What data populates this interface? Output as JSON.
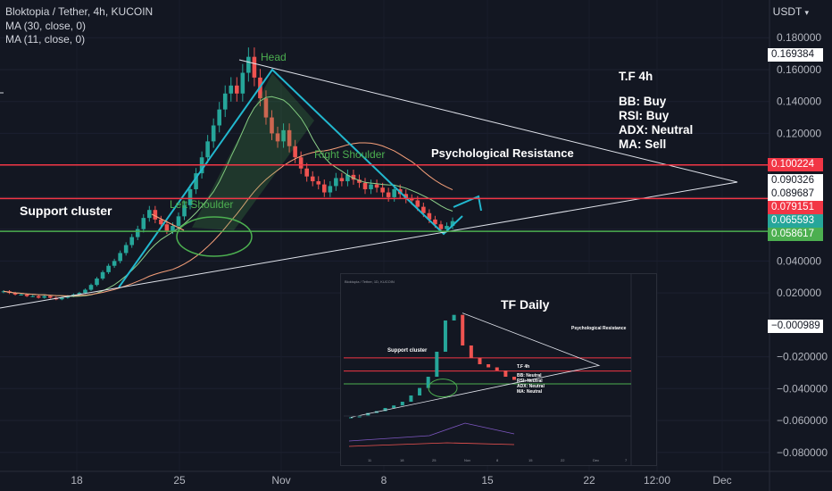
{
  "header": {
    "symbol": "Bloktopia / Tether, 4h, KUCOIN",
    "ma1": "MA (30, close, 0)",
    "ma2": "MA (11, close, 0)"
  },
  "currency": "USDT",
  "colors": {
    "background": "#131722",
    "up_candle": "#26a69a",
    "down_candle": "#ef5350",
    "resistance_line": "#f23645",
    "support_line": "#4caf50",
    "pattern_line": "#22b8cf",
    "trend_line": "#e0e3eb",
    "ma30": "#f7a07a",
    "ma11": "#8fd18b"
  },
  "chart_data": {
    "type": "candlestick",
    "symbol": "Bloktopia / Tether, 4h, KUCOIN",
    "y_ticks": [
      0.18,
      0.16,
      0.14,
      0.12,
      0.1,
      0.08,
      0.06,
      0.04,
      0.02,
      -0.02,
      -0.04,
      -0.06,
      -0.08
    ],
    "y_tick_labels": [
      "0.180000",
      "0.160000",
      "0.140000",
      "0.120000",
      "0.100000",
      "0.080000",
      "0.060000",
      "0.040000",
      "0.020000",
      "−0.020000",
      "−0.040000",
      "−0.060000",
      "−0.080000"
    ],
    "ylim": [
      -0.093,
      0.193
    ],
    "x_tick_labels": [
      "18",
      "25",
      "Nov",
      "8",
      "15",
      "22",
      "12:00",
      "Dec"
    ],
    "price_levels": [
      {
        "value": "0.169384",
        "price": 0.169384,
        "color": "#ffffff",
        "text_color": "#131722"
      },
      {
        "value": "0.100224",
        "price": 0.100224,
        "color": "#f23645",
        "text_color": "#ffffff"
      },
      {
        "value": "0.090326",
        "price": 0.090326,
        "color": "#ffffff",
        "text_color": "#131722"
      },
      {
        "value": "0.089687",
        "price": 0.089687,
        "color": "#ffffff",
        "text_color": "#131722"
      },
      {
        "value": "0.079151",
        "price": 0.079151,
        "color": "#f23645",
        "text_color": "#ffffff"
      },
      {
        "value": "0.065593",
        "price": 0.065593,
        "color": "#26a69a",
        "text_color": "#ffffff"
      },
      {
        "value": "0.058617",
        "price": 0.058617,
        "color": "#4caf50",
        "text_color": "#ffffff"
      },
      {
        "value": "−0.000989",
        "price": -0.000989,
        "color": "#ffffff",
        "text_color": "#131722"
      }
    ],
    "horizontal_lines": [
      {
        "name": "Psychological Resistance",
        "value": 0.100224
      },
      {
        "name": "resistance",
        "value": 0.079151
      },
      {
        "name": "support",
        "value": 0.058617
      }
    ],
    "annotations": {
      "head": "Head",
      "left_shoulder": "Left Shoulder",
      "right_shoulder": "Right Shoulder",
      "support_cluster": "Support cluster",
      "psych_resistance": "Psychological Resistance",
      "tf_title": "T.F 4h",
      "signals": [
        "BB: Buy",
        "RSI: Buy",
        "ADX: Neutral",
        "MA: Sell"
      ]
    },
    "close_series": [
      0.021,
      0.02,
      0.019,
      0.019,
      0.018,
      0.018,
      0.017,
      0.018,
      0.017,
      0.016,
      0.017,
      0.018,
      0.019,
      0.02,
      0.022,
      0.025,
      0.029,
      0.033,
      0.037,
      0.04,
      0.045,
      0.05,
      0.055,
      0.06,
      0.067,
      0.072,
      0.066,
      0.063,
      0.059,
      0.062,
      0.068,
      0.075,
      0.085,
      0.095,
      0.105,
      0.115,
      0.125,
      0.135,
      0.145,
      0.15,
      0.145,
      0.158,
      0.168,
      0.155,
      0.142,
      0.13,
      0.12,
      0.115,
      0.122,
      0.112,
      0.105,
      0.098,
      0.093,
      0.09,
      0.088,
      0.083,
      0.087,
      0.092,
      0.09,
      0.094,
      0.091,
      0.089,
      0.085,
      0.088,
      0.086,
      0.083,
      0.08,
      0.085,
      0.082,
      0.079,
      0.078,
      0.074,
      0.07,
      0.066,
      0.063,
      0.06,
      0.062,
      0.065
    ]
  },
  "inset": {
    "symbol": "Bloktopia / Tether, 1D, KUCOIN",
    "title": "TF Daily",
    "psych_label": "Psychological Resistance",
    "support_label": "Support cluster",
    "tf_title": "T.F 4h",
    "signals": [
      "BB: Neutral",
      "RSI: Neutral",
      "ADX: Neutral",
      "MA: Neutral"
    ],
    "x_ticks": [
      "11",
      "18",
      "25",
      "Nov",
      "8",
      "15",
      "22",
      "Dec",
      "7"
    ]
  }
}
